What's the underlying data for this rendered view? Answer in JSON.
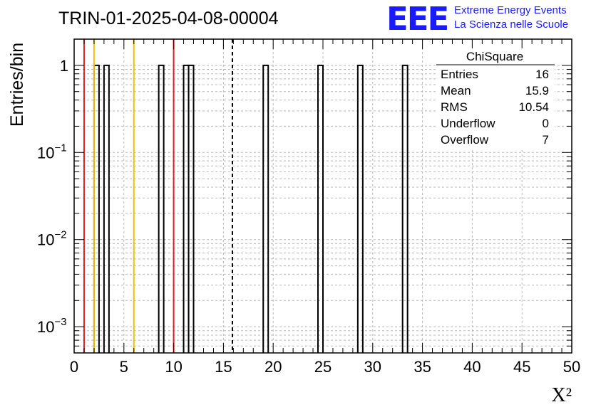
{
  "title": "TRIN-01-2025-04-08-00004",
  "logo": {
    "mark": "EEE",
    "line1": "Extreme Energy Events",
    "line2": "La Scienza nelle Scuole",
    "color": "#1a1aff"
  },
  "stats": {
    "name": "ChiSquare",
    "rows": [
      {
        "label": "Entries",
        "value": "16"
      },
      {
        "label": "Mean",
        "value": "15.9"
      },
      {
        "label": "RMS",
        "value": "10.54"
      },
      {
        "label": "Underflow",
        "value": "0"
      },
      {
        "label": "Overflow",
        "value": "7"
      }
    ]
  },
  "chart_data": {
    "type": "bar",
    "subtype": "histogram",
    "title": "TRIN-01-2025-04-08-00004",
    "xlabel": "X²",
    "ylabel": "Entries/bin",
    "xlim": [
      0,
      50
    ],
    "ylim": [
      0.0005,
      2
    ],
    "ylog": true,
    "grid": true,
    "bin_width": 0.5,
    "bins": [
      {
        "x": 2.0,
        "count": 1
      },
      {
        "x": 3.0,
        "count": 1
      },
      {
        "x": 8.5,
        "count": 1
      },
      {
        "x": 11.0,
        "count": 1
      },
      {
        "x": 11.5,
        "count": 1
      },
      {
        "x": 19.0,
        "count": 1
      },
      {
        "x": 24.5,
        "count": 1
      },
      {
        "x": 28.5,
        "count": 1
      },
      {
        "x": 33.0,
        "count": 1
      }
    ],
    "xticks": [
      "0",
      "5",
      "10",
      "15",
      "20",
      "25",
      "30",
      "35",
      "40",
      "45",
      "50"
    ],
    "yticks": [
      {
        "value": 0.001,
        "base": "10",
        "exp": "−3"
      },
      {
        "value": 0.01,
        "base": "10",
        "exp": "−2"
      },
      {
        "value": 0.1,
        "base": "10",
        "exp": "−1"
      },
      {
        "value": 1,
        "label": "1"
      }
    ],
    "vlines": [
      {
        "x": 1,
        "color": "#e02020",
        "style": "solid"
      },
      {
        "x": 2,
        "color": "#f0c000",
        "style": "solid"
      },
      {
        "x": 6,
        "color": "#f0c000",
        "style": "solid"
      },
      {
        "x": 10,
        "color": "#e02020",
        "style": "solid"
      },
      {
        "x": 15.9,
        "color": "#000000",
        "style": "dashed"
      }
    ]
  }
}
